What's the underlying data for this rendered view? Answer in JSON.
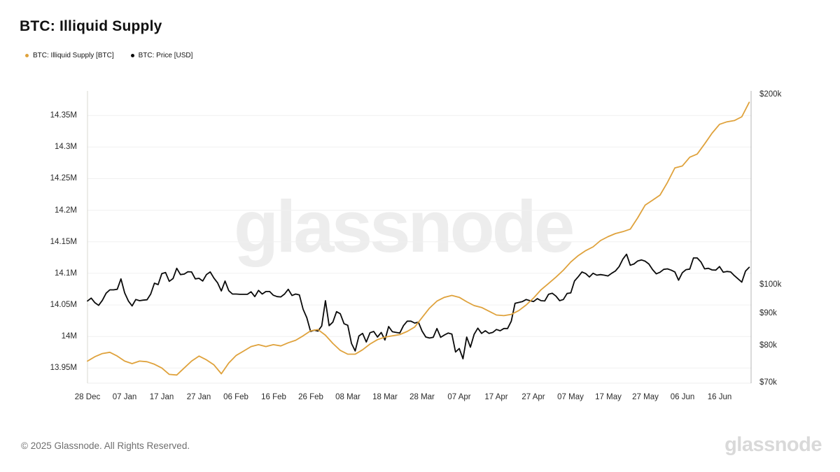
{
  "header": {
    "title": "BTC: Illiquid Supply"
  },
  "legend": [
    {
      "label": "BTC: Illiquid Supply [BTC]",
      "color": "#dfa23c"
    },
    {
      "label": "BTC: Price [USD]",
      "color": "#0a0a0a"
    }
  ],
  "watermark": "glassnode",
  "footer": {
    "copyright": "© 2025 Glassnode. All Rights Reserved.",
    "logo": "glassnode"
  },
  "colors": {
    "supply_line": "#dfa23c",
    "price_line": "#0a0a0a",
    "gridline": "#f0f0f0",
    "axis_left": "#d8d8d0",
    "axis_right": "#b5b5b5",
    "baseline": "#ececec"
  },
  "chart_data": {
    "type": "line",
    "title": "BTC: Illiquid Supply",
    "x_axis": {
      "min": 0,
      "max": 178.5,
      "unit": "days from 28 Dec 2024",
      "tick_days": [
        0,
        10,
        20,
        30,
        40,
        50,
        60,
        70,
        80,
        90,
        100,
        110,
        120,
        130,
        140,
        150,
        160,
        170
      ],
      "tick_labels": [
        "28 Dec",
        "07 Jan",
        "17 Jan",
        "27 Jan",
        "06 Feb",
        "16 Feb",
        "26 Feb",
        "08 Mar",
        "18 Mar",
        "28 Mar",
        "07 Apr",
        "17 Apr",
        "27 Apr",
        "07 May",
        "17 May",
        "27 May",
        "06 Jun",
        "16 Jun"
      ]
    },
    "left_axis": {
      "scale": "linear",
      "unit": "BTC (millions)",
      "min": 13.926,
      "max": 14.389,
      "ticks": [
        {
          "value": 14.35,
          "label": "14.35M"
        },
        {
          "value": 14.3,
          "label": "14.3M"
        },
        {
          "value": 14.25,
          "label": "14.25M"
        },
        {
          "value": 14.2,
          "label": "14.2M"
        },
        {
          "value": 14.15,
          "label": "14.15M"
        },
        {
          "value": 14.1,
          "label": "14.1M"
        },
        {
          "value": 14.05,
          "label": "14.05M"
        },
        {
          "value": 14.0,
          "label": "14M"
        },
        {
          "value": 13.95,
          "label": "13.95M"
        }
      ]
    },
    "right_axis": {
      "scale": "log",
      "unit": "USD (thousands)",
      "min": 69.8,
      "max": 202.6,
      "ticks": [
        {
          "value": 200,
          "label": "$200k"
        },
        {
          "value": 100,
          "label": "$100k"
        },
        {
          "value": 90,
          "label": "$90k"
        },
        {
          "value": 80,
          "label": "$80k"
        },
        {
          "value": 70,
          "label": "$70k"
        }
      ]
    },
    "series": [
      {
        "name": "BTC: Illiquid Supply [BTC]",
        "axis": "left",
        "color": "#dfa23c",
        "start_day": 0,
        "day_step": 2,
        "values": [
          13.961,
          13.968,
          13.973,
          13.975,
          13.969,
          13.961,
          13.957,
          13.961,
          13.96,
          13.956,
          13.95,
          13.94,
          13.939,
          13.95,
          13.961,
          13.969,
          13.963,
          13.955,
          13.941,
          13.958,
          13.97,
          13.977,
          13.984,
          13.987,
          13.984,
          13.987,
          13.985,
          13.99,
          13.994,
          14.001,
          14.009,
          14.011,
          14.002,
          13.989,
          13.978,
          13.972,
          13.972,
          13.979,
          13.988,
          13.995,
          13.999,
          14.001,
          14.003,
          14.008,
          14.015,
          14.03,
          14.045,
          14.056,
          14.062,
          14.065,
          14.062,
          14.055,
          14.049,
          14.046,
          14.04,
          14.034,
          14.033,
          14.035,
          14.041,
          14.05,
          14.061,
          14.074,
          14.084,
          14.094,
          14.105,
          14.118,
          14.128,
          14.136,
          14.142,
          14.152,
          14.158,
          14.163,
          14.166,
          14.17,
          14.188,
          14.208,
          14.216,
          14.224,
          14.244,
          14.267,
          14.27,
          14.284,
          14.289,
          14.305,
          14.322,
          14.336,
          14.34,
          14.342,
          14.348,
          14.371
        ]
      },
      {
        "name": "BTC: Price [USD]",
        "axis": "right",
        "color": "#0a0a0a",
        "start_day": 0,
        "day_step": 1,
        "values": [
          94.2,
          95.2,
          93.6,
          92.7,
          94.4,
          96.9,
          98.1,
          98.1,
          98.3,
          102.1,
          97.0,
          94.2,
          92.5,
          94.7,
          94.3,
          94.5,
          94.6,
          96.6,
          100.5,
          100.0,
          104.1,
          104.5,
          101.2,
          102.2,
          106.1,
          103.7,
          103.9,
          104.8,
          104.7,
          102.1,
          102.3,
          101.3,
          103.7,
          104.7,
          102.4,
          100.6,
          97.7,
          101.3,
          97.8,
          96.6,
          96.6,
          96.5,
          96.5,
          96.5,
          97.4,
          95.7,
          97.9,
          96.6,
          97.5,
          97.5,
          96.2,
          95.7,
          95.6,
          96.6,
          98.3,
          96.1,
          96.6,
          96.3,
          91.4,
          88.6,
          84.3,
          84.7,
          84.4,
          86.0,
          94.3,
          86.1,
          87.2,
          90.6,
          89.9,
          86.7,
          86.2,
          80.7,
          78.5,
          82.9,
          83.7,
          81.1,
          83.9,
          84.3,
          82.6,
          84.0,
          81.7,
          85.8,
          84.2,
          84.0,
          83.8,
          86.1,
          87.5,
          87.5,
          86.9,
          87.2,
          84.4,
          82.6,
          82.3,
          82.5,
          85.2,
          82.5,
          83.2,
          83.8,
          83.5,
          78.2,
          79.2,
          76.3,
          82.6,
          79.6,
          83.4,
          85.3,
          83.7,
          84.5,
          83.7,
          84.0,
          84.9,
          84.5,
          85.2,
          85.2,
          87.5,
          93.4,
          93.7,
          94.0,
          94.7,
          94.3,
          94.0,
          95.0,
          94.3,
          94.2,
          96.5,
          96.9,
          95.9,
          94.3,
          94.7,
          96.8,
          97.0,
          101.3,
          102.9,
          104.7,
          104.1,
          102.8,
          104.2,
          103.5,
          103.7,
          103.5,
          103.2,
          104.2,
          105.1,
          106.8,
          109.7,
          111.7,
          107.3,
          107.8,
          109.0,
          109.4,
          108.9,
          107.8,
          105.6,
          104.0,
          104.6,
          105.7,
          105.9,
          105.4,
          104.7,
          101.6,
          104.4,
          105.6,
          105.8,
          110.2,
          110.2,
          108.6,
          105.9,
          106.1,
          105.5,
          105.4,
          106.8,
          104.6,
          104.9,
          104.7,
          103.3,
          102.1,
          100.9,
          105.0,
          106.5
        ]
      }
    ],
    "legend_position": "top-left",
    "grid": "horizontal-only"
  }
}
